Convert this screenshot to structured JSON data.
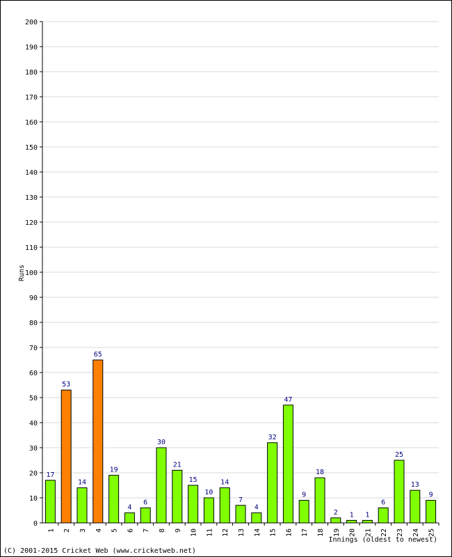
{
  "footer": "(C) 2001-2015 Cricket Web (www.cricketweb.net)",
  "colors": {
    "normal": "#80ff00",
    "highlight": "#ff8000",
    "grid": "#d9d9d9",
    "value_label": "#000080"
  },
  "chart_data": {
    "type": "bar",
    "title": "",
    "xlabel": "Innings (oldest to newest)",
    "ylabel": "Runs",
    "ylim": [
      0,
      200
    ],
    "ytick_step": 10,
    "grid": true,
    "categories": [
      "1",
      "2",
      "3",
      "4",
      "5",
      "6",
      "7",
      "8",
      "9",
      "10",
      "11",
      "12",
      "13",
      "14",
      "15",
      "16",
      "17",
      "18",
      "19",
      "20",
      "21",
      "22",
      "23",
      "24",
      "25"
    ],
    "values": [
      17,
      53,
      14,
      65,
      19,
      4,
      6,
      30,
      21,
      15,
      10,
      14,
      7,
      4,
      32,
      47,
      9,
      18,
      2,
      1,
      1,
      6,
      25,
      13,
      9
    ],
    "highlighted": [
      false,
      true,
      false,
      true,
      false,
      false,
      false,
      false,
      false,
      false,
      false,
      false,
      false,
      false,
      false,
      false,
      false,
      false,
      false,
      false,
      false,
      false,
      false,
      false,
      false
    ]
  }
}
